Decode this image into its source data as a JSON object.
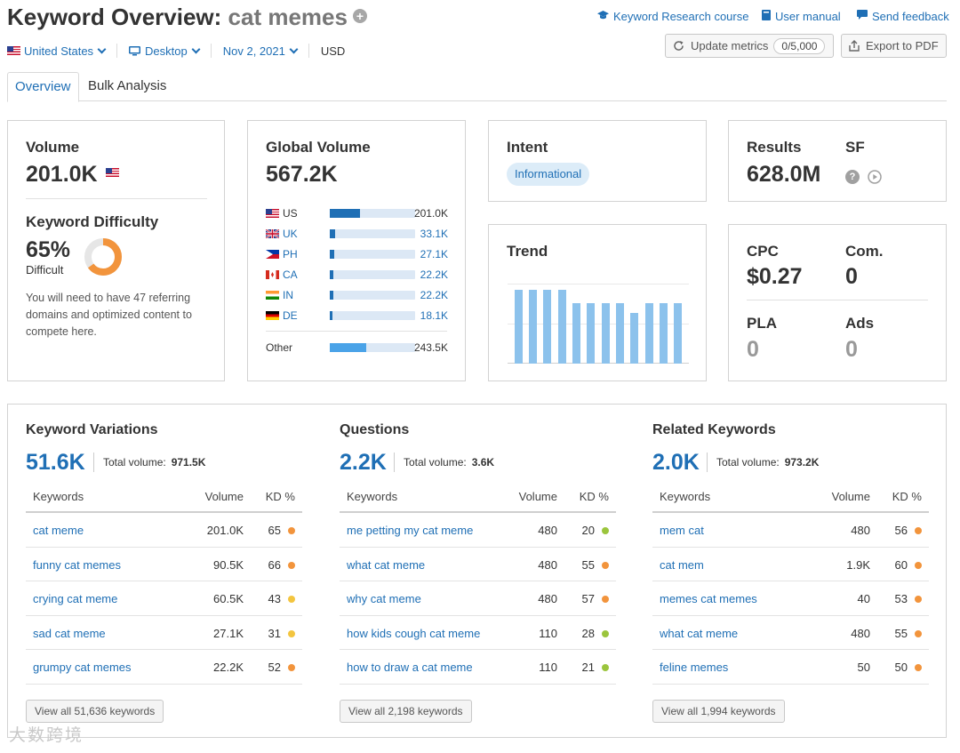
{
  "header": {
    "title_prefix": "Keyword Overview:",
    "keyword": "cat memes",
    "links": {
      "course": "Keyword Research course",
      "manual": "User manual",
      "feedback": "Send feedback"
    }
  },
  "filters": {
    "country": "United States",
    "device": "Desktop",
    "date": "Nov 2, 2021",
    "currency": "USD"
  },
  "actions": {
    "update_label": "Update metrics",
    "update_count": "0/5,000",
    "export_label": "Export to PDF"
  },
  "tabs": [
    "Overview",
    "Bulk Analysis"
  ],
  "volume": {
    "title": "Volume",
    "value": "201.0K",
    "kd_title": "Keyword Difficulty",
    "kd_value": "65%",
    "kd_percent": 65,
    "kd_label": "Difficult",
    "kd_desc": "You will need to have 47 referring domains and optimized content to compete here."
  },
  "global_volume": {
    "title": "Global Volume",
    "value": "567.2K",
    "countries": [
      {
        "code": "US",
        "value": "201.0K",
        "share": 0.35
      },
      {
        "code": "UK",
        "value": "33.1K",
        "share": 0.06
      },
      {
        "code": "PH",
        "value": "27.1K",
        "share": 0.05
      },
      {
        "code": "CA",
        "value": "22.2K",
        "share": 0.04
      },
      {
        "code": "IN",
        "value": "22.2K",
        "share": 0.04
      },
      {
        "code": "DE",
        "value": "18.1K",
        "share": 0.03
      }
    ],
    "other": {
      "label": "Other",
      "value": "243.5K",
      "share": 0.43
    }
  },
  "intent": {
    "title": "Intent",
    "badge": "Informational"
  },
  "results": {
    "title": "Results",
    "value": "628.0M",
    "sf_title": "SF"
  },
  "trend": {
    "title": "Trend",
    "values": [
      0.92,
      0.92,
      0.92,
      0.92,
      0.76,
      0.76,
      0.76,
      0.76,
      0.63,
      0.76,
      0.76,
      0.76
    ]
  },
  "cpc": {
    "cpc_title": "CPC",
    "cpc_value": "$0.27",
    "com_title": "Com.",
    "com_value": "0",
    "pla_title": "PLA",
    "pla_value": "0",
    "ads_title": "Ads",
    "ads_value": "0"
  },
  "columns": {
    "kw": "Keywords",
    "vol": "Volume",
    "kd": "KD %"
  },
  "total_label": "Total volume:",
  "colors": {
    "orange": "#f2943c",
    "yellow": "#f3c53f",
    "green": "#9bc53d"
  },
  "variations": {
    "title": "Keyword Variations",
    "count": "51.6K",
    "total": "971.5K",
    "rows": [
      {
        "kw": "cat meme",
        "vol": "201.0K",
        "kd": "65",
        "color": "#f2943c"
      },
      {
        "kw": "funny cat memes",
        "vol": "90.5K",
        "kd": "66",
        "color": "#f2943c"
      },
      {
        "kw": "crying cat meme",
        "vol": "60.5K",
        "kd": "43",
        "color": "#f3c53f"
      },
      {
        "kw": "sad cat meme",
        "vol": "27.1K",
        "kd": "31",
        "color": "#f3c53f"
      },
      {
        "kw": "grumpy cat memes",
        "vol": "22.2K",
        "kd": "52",
        "color": "#f2943c"
      }
    ],
    "view_all": "View all 51,636 keywords"
  },
  "questions": {
    "title": "Questions",
    "count": "2.2K",
    "total": "3.6K",
    "rows": [
      {
        "kw": "me petting my cat meme",
        "vol": "480",
        "kd": "20",
        "color": "#9bc53d"
      },
      {
        "kw": "what cat meme",
        "vol": "480",
        "kd": "55",
        "color": "#f2943c"
      },
      {
        "kw": "why cat meme",
        "vol": "480",
        "kd": "57",
        "color": "#f2943c"
      },
      {
        "kw": "how kids cough cat meme",
        "vol": "110",
        "kd": "28",
        "color": "#9bc53d"
      },
      {
        "kw": "how to draw a cat meme",
        "vol": "110",
        "kd": "21",
        "color": "#9bc53d"
      }
    ],
    "view_all": "View all 2,198 keywords"
  },
  "related": {
    "title": "Related Keywords",
    "count": "2.0K",
    "total": "973.2K",
    "rows": [
      {
        "kw": "mem cat",
        "vol": "480",
        "kd": "56",
        "color": "#f2943c"
      },
      {
        "kw": "cat mem",
        "vol": "1.9K",
        "kd": "60",
        "color": "#f2943c"
      },
      {
        "kw": "memes cat memes",
        "vol": "40",
        "kd": "53",
        "color": "#f2943c"
      },
      {
        "kw": "what cat meme",
        "vol": "480",
        "kd": "55",
        "color": "#f2943c"
      },
      {
        "kw": "feline memes",
        "vol": "50",
        "kd": "50",
        "color": "#f2943c"
      }
    ],
    "view_all": "View all 1,994 keywords"
  },
  "watermark": "大数跨境"
}
